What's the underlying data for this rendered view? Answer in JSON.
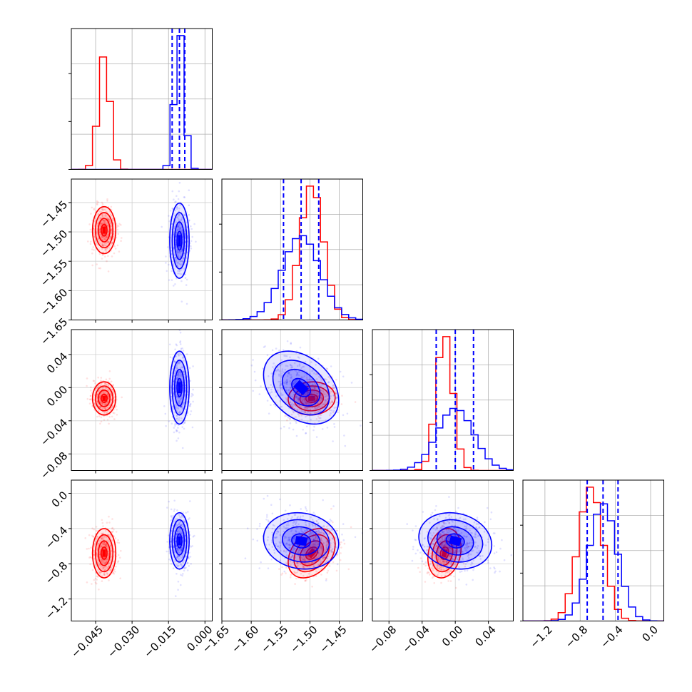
{
  "chart_data": {
    "type": "corner",
    "series": [
      {
        "name": "",
        "color": "#ff0000"
      },
      {
        "name": "",
        "color": "#0000ff"
      }
    ],
    "quantile_color": "#0000ff",
    "parameters": [
      {
        "range": [
          -0.055,
          0.003
        ],
        "ticks": [
          -0.045,
          -0.03,
          -0.015,
          0.0
        ],
        "tick_labels": [
          "−0.045",
          "−0.030",
          "−0.015",
          "0.000"
        ],
        "means": [
          -0.0415,
          -0.0105
        ],
        "sds": [
          0.0024,
          0.002
        ],
        "quantiles": [
          -0.0135,
          -0.0105,
          -0.0083
        ]
      },
      {
        "range": [
          -1.65,
          -1.41
        ],
        "ticks": [
          -1.65,
          -1.6,
          -1.55,
          -1.5,
          -1.45
        ],
        "tick_labels": [
          "−1.65",
          "−1.60",
          "−1.55",
          "−1.50",
          "−1.45"
        ],
        "means": [
          -1.497,
          -1.515
        ],
        "sds": [
          0.02,
          0.032
        ],
        "quantiles": [
          -1.545,
          -1.515,
          -1.485
        ]
      },
      {
        "range": [
          -0.1,
          0.07
        ],
        "ticks": [
          -0.08,
          -0.04,
          0.0,
          0.04
        ],
        "tick_labels": [
          "−0.08",
          "−0.04",
          "0.00",
          "0.04"
        ],
        "means": [
          -0.013,
          0.0
        ],
        "sds": [
          0.01,
          0.022
        ],
        "quantiles": [
          -0.023,
          0.0,
          0.022
        ]
      },
      {
        "range": [
          -1.45,
          0.15
        ],
        "ticks": [
          -1.2,
          -0.8,
          -0.4,
          0.0
        ],
        "tick_labels": [
          "−1.2",
          "−0.8",
          "−0.4",
          "0.0"
        ],
        "means": [
          -0.68,
          -0.54
        ],
        "sds": [
          0.14,
          0.16
        ],
        "quantiles": [
          -0.72,
          -0.54,
          -0.37
        ]
      }
    ],
    "correlations": {
      "red": {
        "1-2": 0.05,
        "1-3": 0.35,
        "2-3": 0.2
      },
      "blue": {
        "1-2": -0.35,
        "1-3": -0.1,
        "2-3": -0.15
      }
    },
    "grid": true
  }
}
